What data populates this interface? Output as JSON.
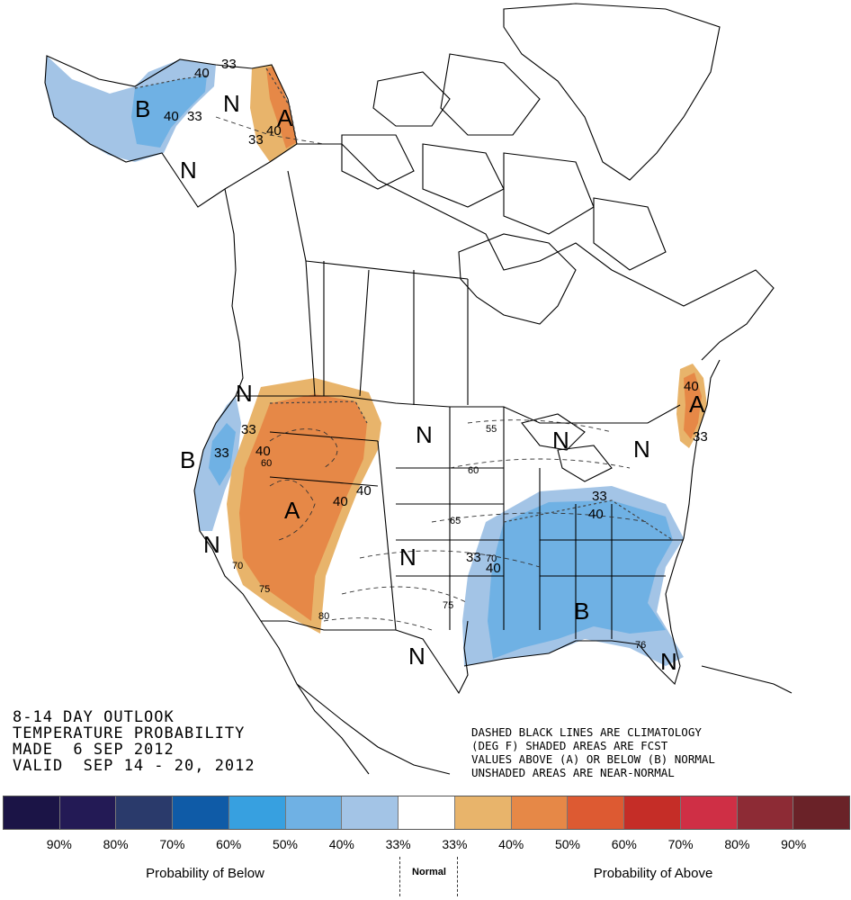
{
  "title_lines": [
    "8-14 DAY OUTLOOK",
    "TEMPERATURE PROBABILITY",
    "MADE  6 SEP 2012",
    "VALID  SEP 14 - 20, 2012"
  ],
  "note_lines": [
    "DASHED BLACK LINES ARE CLIMATOLOGY",
    "(DEG F) SHADED AREAS ARE FCST",
    "VALUES ABOVE (A) OR BELOW (B) NORMAL",
    "UNSHADED AREAS ARE NEAR-NORMAL"
  ],
  "legend": {
    "colors": [
      "#1b1446",
      "#231a55",
      "#2a3a6b",
      "#0f5ba7",
      "#37a0e0",
      "#6fb1e4",
      "#a3c4e6",
      "#ffffff",
      "#e8b46b",
      "#e68847",
      "#dd5a32",
      "#c52d27",
      "#cf2f45",
      "#8d2b35",
      "#6a2228"
    ],
    "ticks": [
      "90%",
      "80%",
      "70%",
      "60%",
      "50%",
      "40%",
      "33%",
      "33%",
      "40%",
      "50%",
      "60%",
      "70%",
      "80%",
      "90%"
    ],
    "below_label": "Probability of Below",
    "normal_label": "Normal",
    "above_label": "Probability of Above"
  },
  "map_labels": {
    "letters": [
      "B",
      "N",
      "A",
      "N",
      "N",
      "B",
      "A",
      "N",
      "N",
      "N",
      "N",
      "A",
      "N",
      "B",
      "N",
      "N"
    ],
    "contour_values": [
      "40",
      "33",
      "40",
      "33",
      "33",
      "40",
      "33",
      "40",
      "33",
      "40",
      "40",
      "33",
      "40",
      "33",
      "40",
      "33",
      "40",
      "60",
      "70",
      "75",
      "80",
      "55",
      "60",
      "65",
      "70",
      "75",
      "76"
    ]
  },
  "colors": {
    "below_40": "#6fb1e4",
    "below_33": "#a3c4e6",
    "above_33": "#e8b46b",
    "above_40": "#e68847"
  }
}
